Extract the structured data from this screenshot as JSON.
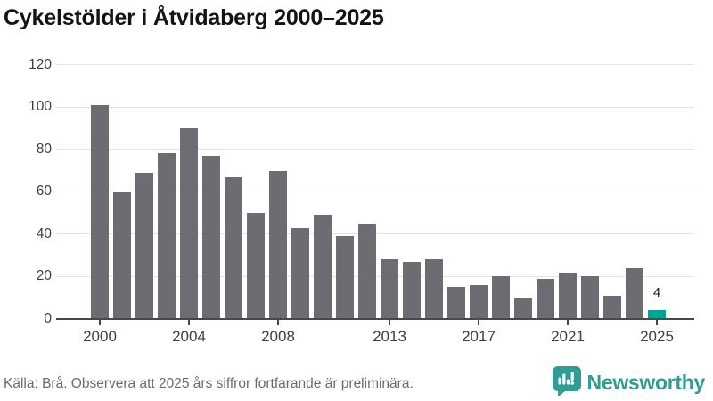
{
  "header": {
    "title": "Cykelstölder i Åtvidaberg 2000–2025"
  },
  "chart_data": {
    "type": "bar",
    "title": "Cykelstölder i Åtvidaberg 2000–2025",
    "categories": [
      2000,
      2001,
      2002,
      2003,
      2004,
      2005,
      2006,
      2007,
      2008,
      2009,
      2010,
      2011,
      2012,
      2013,
      2014,
      2015,
      2016,
      2017,
      2018,
      2019,
      2020,
      2021,
      2022,
      2023,
      2024,
      2025
    ],
    "values": [
      101,
      60,
      69,
      78,
      90,
      77,
      67,
      50,
      70,
      43,
      49,
      39,
      45,
      28,
      27,
      28,
      15,
      16,
      20,
      10,
      19,
      22,
      20,
      11,
      24,
      4
    ],
    "xticks": [
      2000,
      2004,
      2008,
      2013,
      2017,
      2021,
      2025
    ],
    "yticks": [
      0,
      20,
      40,
      60,
      80,
      100,
      120
    ],
    "ylim": [
      0,
      120
    ],
    "grid": true,
    "legend": false,
    "xlabel": "",
    "ylabel": "",
    "bar_color": "#6e6c72",
    "highlight_color": "#00a292",
    "highlight_year": 2025,
    "annotations": [
      {
        "year": 2025,
        "text": "4"
      }
    ]
  },
  "footer": {
    "source_note": "Källa: Brå. Observera att 2025 års siffror fortfarande är preliminära.",
    "brand_name": "Newsworthy",
    "brand_color": "#2f9d94"
  }
}
